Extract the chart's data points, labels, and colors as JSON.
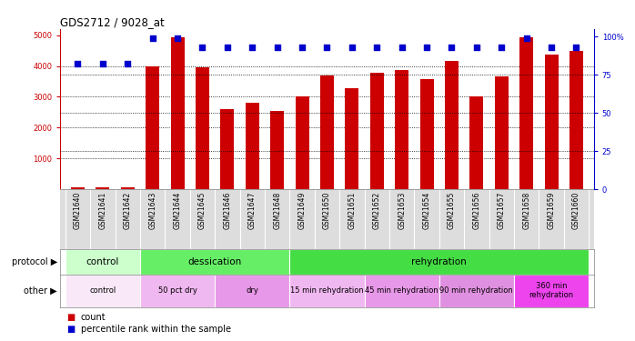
{
  "title": "GDS2712 / 9028_at",
  "samples": [
    "GSM21640",
    "GSM21641",
    "GSM21642",
    "GSM21643",
    "GSM21644",
    "GSM21645",
    "GSM21646",
    "GSM21647",
    "GSM21648",
    "GSM21649",
    "GSM21650",
    "GSM21651",
    "GSM21652",
    "GSM21653",
    "GSM21654",
    "GSM21655",
    "GSM21656",
    "GSM21657",
    "GSM21658",
    "GSM21659",
    "GSM21660"
  ],
  "counts": [
    60,
    55,
    60,
    4000,
    4940,
    3970,
    2610,
    2820,
    2530,
    3020,
    3680,
    3280,
    3790,
    3870,
    3560,
    4150,
    3020,
    3650,
    4940,
    4380,
    4490
  ],
  "percentiles": [
    82,
    82,
    82,
    99,
    99,
    93,
    93,
    93,
    93,
    93,
    93,
    93,
    93,
    93,
    93,
    93,
    93,
    93,
    99,
    93,
    93
  ],
  "bar_color": "#cc0000",
  "dot_color": "#0000cc",
  "protocol_groups": [
    {
      "label": "control",
      "start": 0,
      "end": 3,
      "color": "#ccffcc"
    },
    {
      "label": "dessication",
      "start": 3,
      "end": 9,
      "color": "#66ee66"
    },
    {
      "label": "rehydration",
      "start": 9,
      "end": 21,
      "color": "#44dd44"
    }
  ],
  "other_groups": [
    {
      "label": "control",
      "start": 0,
      "end": 3,
      "color": "#f8e8f8"
    },
    {
      "label": "50 pct dry",
      "start": 3,
      "end": 6,
      "color": "#f0b8f0"
    },
    {
      "label": "dry",
      "start": 6,
      "end": 9,
      "color": "#e898e8"
    },
    {
      "label": "15 min rehydration",
      "start": 9,
      "end": 12,
      "color": "#f0b8f0"
    },
    {
      "label": "45 min rehydration",
      "start": 12,
      "end": 15,
      "color": "#e898e8"
    },
    {
      "label": "90 min rehydration",
      "start": 15,
      "end": 18,
      "color": "#e090e0"
    },
    {
      "label": "360 min\nrehydration",
      "start": 18,
      "end": 21,
      "color": "#ee44ee"
    }
  ],
  "bg_color": "#ffffff",
  "tick_label_fontsize": 5.5,
  "xlabel_bg": "#dddddd"
}
